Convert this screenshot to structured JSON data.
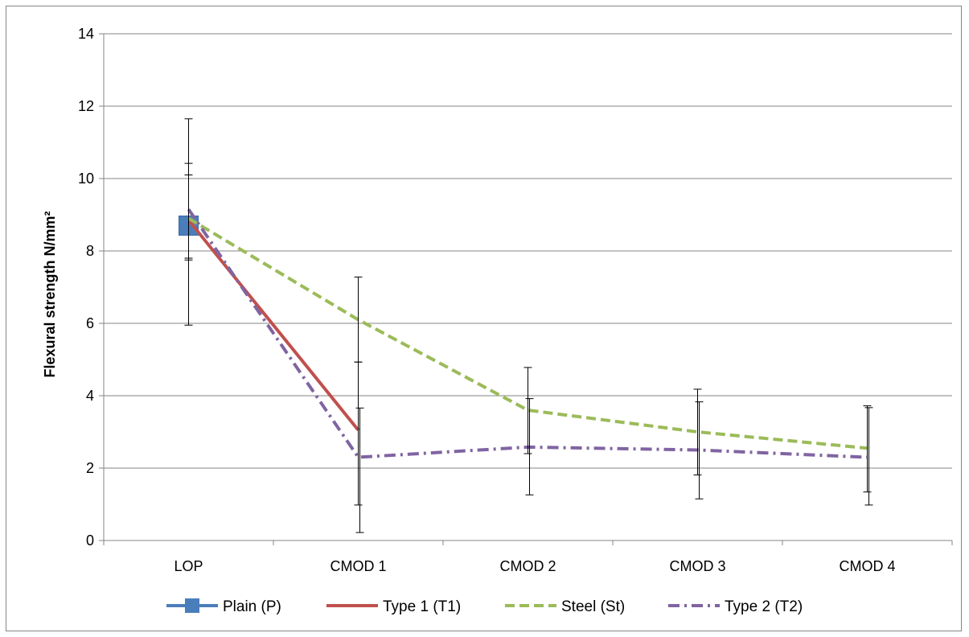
{
  "chart_data": {
    "type": "line",
    "title": "",
    "xlabel": "",
    "ylabel": "Flexural strength  N/mm²",
    "ylim": [
      0,
      14
    ],
    "yticks": [
      0,
      2,
      4,
      6,
      8,
      10,
      12,
      14
    ],
    "categories": [
      "LOP",
      "CMOD 1",
      "CMOD 2",
      "CMOD 3",
      "CMOD 4"
    ],
    "grid": "horizontal",
    "legend_position": "bottom",
    "series": [
      {
        "name": "Plain (P)",
        "values": [
          8.7,
          null,
          null,
          null,
          null
        ],
        "color": "#4a7ebb",
        "style": "solid",
        "marker": "square",
        "error": [
          [
            5.95,
            11.65
          ],
          null,
          null,
          null,
          null
        ]
      },
      {
        "name": "Type 1 (T1)",
        "values": [
          8.85,
          3.05,
          null,
          null,
          null
        ],
        "color": "#c0504d",
        "style": "solid",
        "marker": "none",
        "error": [
          [
            7.75,
            10.1
          ],
          [
            0.98,
            4.93
          ],
          null,
          null,
          null
        ]
      },
      {
        "name": "Steel (St)",
        "values": [
          8.9,
          6.1,
          3.6,
          3.0,
          2.55
        ],
        "color": "#9bbb59",
        "style": "dash",
        "marker": "none",
        "error": [
          [
            7.8,
            10.42
          ],
          [
            4.93,
            7.28
          ],
          [
            2.4,
            4.78
          ],
          [
            1.81,
            4.18
          ],
          [
            1.34,
            3.72
          ]
        ]
      },
      {
        "name": "Type 2 (T2)",
        "values": [
          9.15,
          2.3,
          2.58,
          2.5,
          2.3
        ],
        "color": "#8064a2",
        "style": "dashdot",
        "marker": "none",
        "error": [
          null,
          [
            0.22,
            3.66
          ],
          [
            1.26,
            3.92
          ],
          [
            1.15,
            3.83
          ],
          [
            0.98,
            3.67
          ]
        ]
      }
    ]
  }
}
